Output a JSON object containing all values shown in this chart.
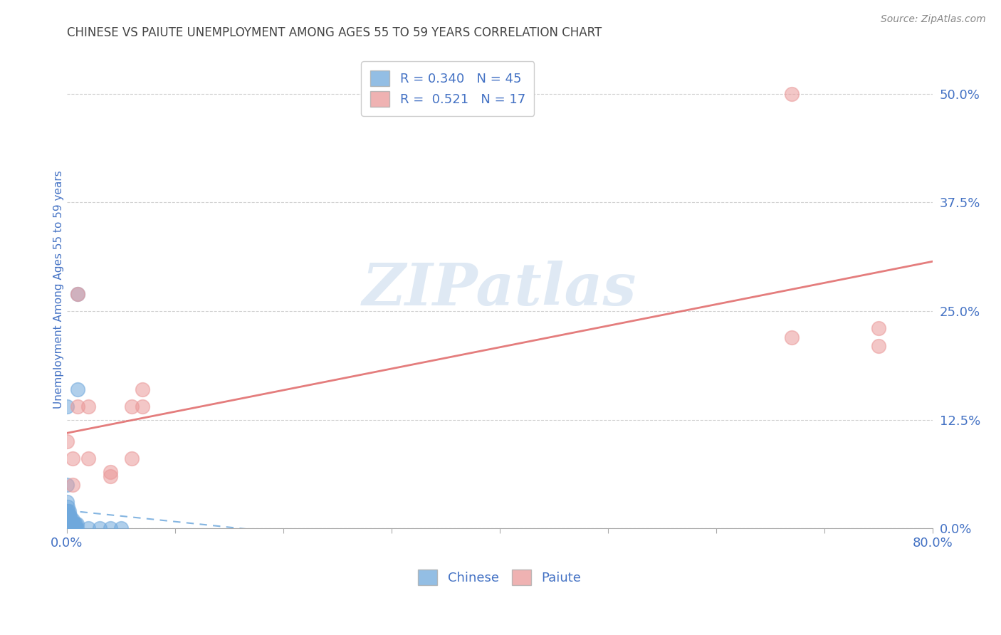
{
  "title": "CHINESE VS PAIUTE UNEMPLOYMENT AMONG AGES 55 TO 59 YEARS CORRELATION CHART",
  "source": "Source: ZipAtlas.com",
  "ylabel": "Unemployment Among Ages 55 to 59 years",
  "xlim": [
    0.0,
    0.8
  ],
  "ylim": [
    0.0,
    0.55
  ],
  "xtick_positions": [
    0.0,
    0.1,
    0.2,
    0.3,
    0.4,
    0.5,
    0.6,
    0.7,
    0.8
  ],
  "xticklabels": [
    "0.0%",
    "",
    "",
    "",
    "",
    "",
    "",
    "",
    "80.0%"
  ],
  "ytick_positions": [
    0.0,
    0.125,
    0.25,
    0.375,
    0.5
  ],
  "ytick_labels": [
    "0.0%",
    "12.5%",
    "25.0%",
    "37.5%",
    "50.0%"
  ],
  "watermark": "ZIPatlas",
  "chinese_R": "0.340",
  "chinese_N": "45",
  "paiute_R": "0.521",
  "paiute_N": "17",
  "chinese_color": "#6fa8dc",
  "paiute_color": "#ea9999",
  "paiute_line_color": "#e06666",
  "title_color": "#434343",
  "tick_label_color": "#4472c4",
  "chinese_scatter_x": [
    0.0,
    0.0,
    0.0,
    0.0,
    0.0,
    0.0,
    0.0,
    0.0,
    0.0,
    0.0,
    0.001,
    0.001,
    0.001,
    0.001,
    0.001,
    0.001,
    0.002,
    0.002,
    0.002,
    0.002,
    0.002,
    0.003,
    0.003,
    0.003,
    0.003,
    0.004,
    0.004,
    0.004,
    0.005,
    0.005,
    0.005,
    0.006,
    0.006,
    0.007,
    0.007,
    0.008,
    0.008,
    0.009,
    0.009,
    0.01,
    0.01,
    0.02,
    0.03,
    0.04,
    0.05
  ],
  "chinese_scatter_y": [
    0.0,
    0.0,
    0.0,
    0.0,
    0.005,
    0.01,
    0.02,
    0.03,
    0.05,
    0.14,
    0.0,
    0.005,
    0.01,
    0.015,
    0.02,
    0.025,
    0.0,
    0.005,
    0.01,
    0.015,
    0.02,
    0.0,
    0.005,
    0.01,
    0.015,
    0.0,
    0.005,
    0.01,
    0.0,
    0.005,
    0.01,
    0.0,
    0.005,
    0.0,
    0.005,
    0.0,
    0.005,
    0.0,
    0.005,
    0.16,
    0.27,
    0.0,
    0.0,
    0.0,
    0.0
  ],
  "paiute_scatter_x": [
    0.0,
    0.005,
    0.005,
    0.01,
    0.01,
    0.02,
    0.02,
    0.04,
    0.04,
    0.06,
    0.06,
    0.07,
    0.07,
    0.67,
    0.67,
    0.75,
    0.75
  ],
  "paiute_scatter_y": [
    0.1,
    0.05,
    0.08,
    0.14,
    0.27,
    0.14,
    0.08,
    0.06,
    0.065,
    0.14,
    0.08,
    0.14,
    0.16,
    0.22,
    0.5,
    0.21,
    0.23
  ],
  "background_color": "#ffffff",
  "grid_color": "#cccccc"
}
